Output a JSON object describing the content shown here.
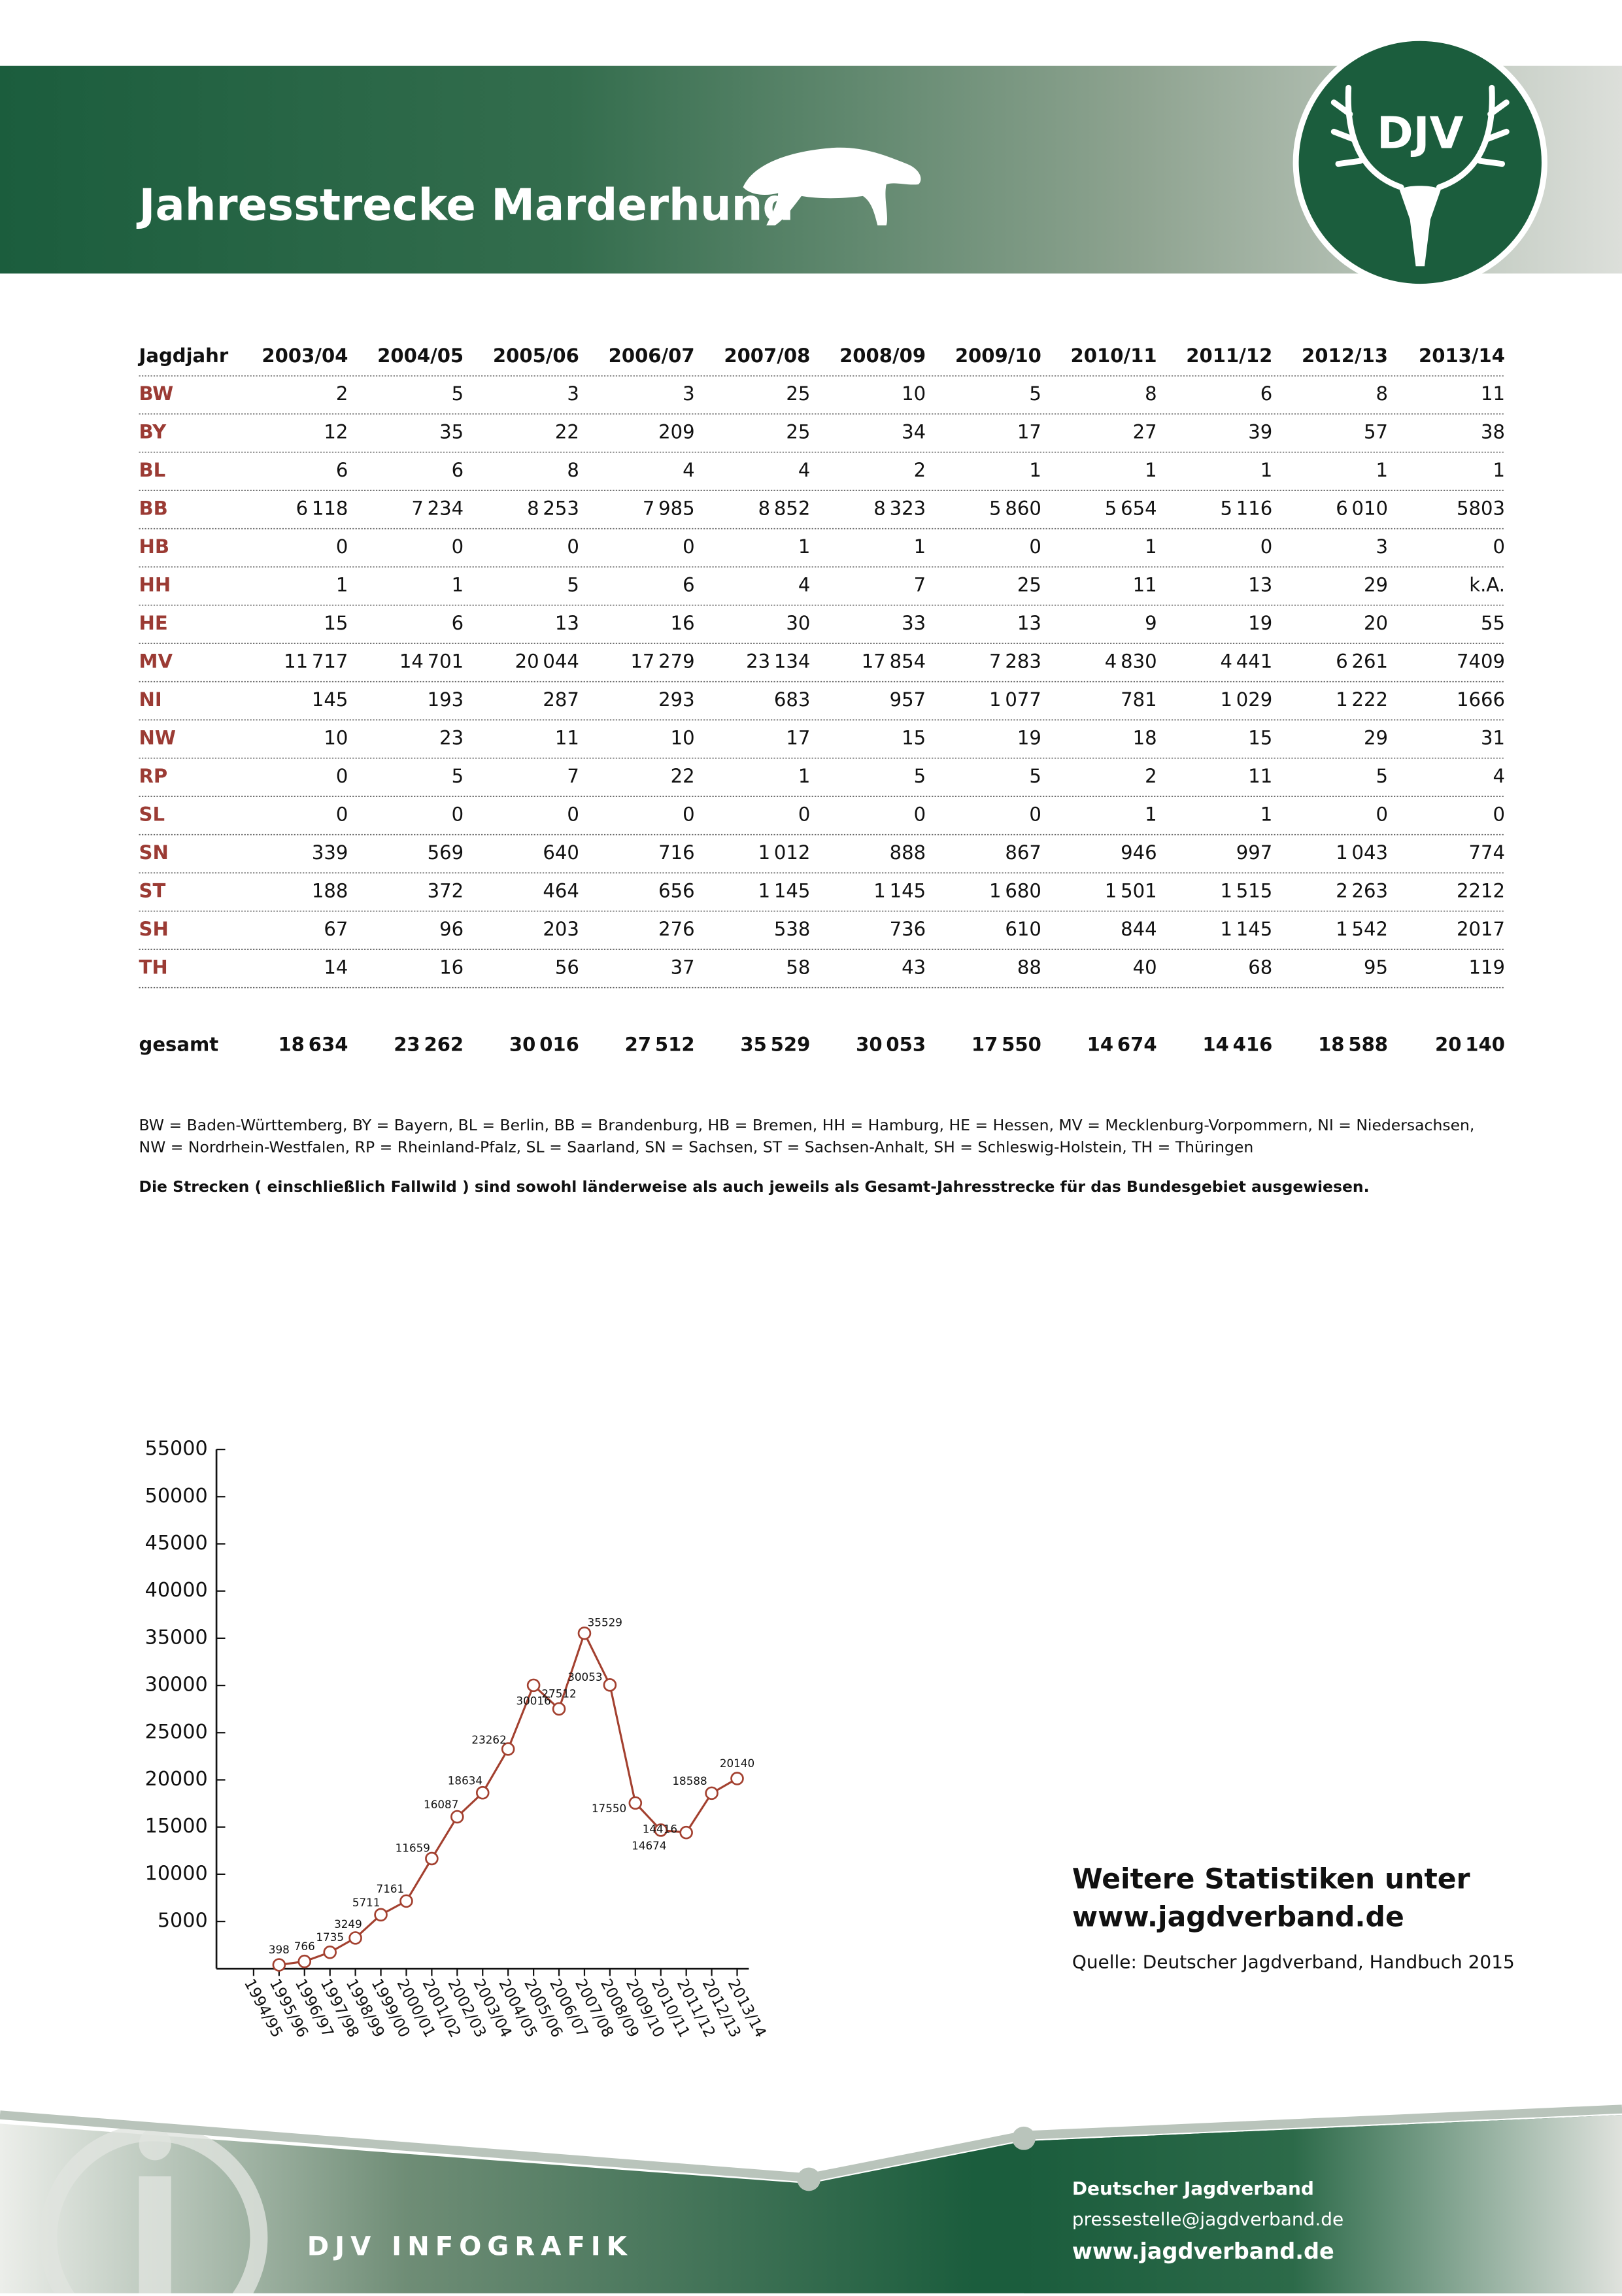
{
  "header": {
    "title": "Jahresstrecke Marderhund",
    "logo": "DJV"
  },
  "table": {
    "columns": [
      "Jagdjahr",
      "2003/04",
      "2004/05",
      "2005/06",
      "2006/07",
      "2007/08",
      "2008/09",
      "2009/10",
      "2010/11",
      "2011/12",
      "2012/13",
      "2013/14"
    ],
    "rows": [
      [
        "BW",
        "2",
        "5",
        "3",
        "3",
        "25",
        "10",
        "5",
        "8",
        "6",
        "8",
        "11"
      ],
      [
        "BY",
        "12",
        "35",
        "22",
        "209",
        "25",
        "34",
        "17",
        "27",
        "39",
        "57",
        "38"
      ],
      [
        "BL",
        "6",
        "6",
        "8",
        "4",
        "4",
        "2",
        "1",
        "1",
        "1",
        "1",
        "1"
      ],
      [
        "BB",
        "6 118",
        "7 234",
        "8 253",
        "7 985",
        "8 852",
        "8 323",
        "5 860",
        "5 654",
        "5 116",
        "6 010",
        "5803"
      ],
      [
        "HB",
        "0",
        "0",
        "0",
        "0",
        "1",
        "1",
        "0",
        "1",
        "0",
        "3",
        "0"
      ],
      [
        "HH",
        "1",
        "1",
        "5",
        "6",
        "4",
        "7",
        "25",
        "11",
        "13",
        "29",
        "k.A."
      ],
      [
        "HE",
        "15",
        "6",
        "13",
        "16",
        "30",
        "33",
        "13",
        "9",
        "19",
        "20",
        "55"
      ],
      [
        "MV",
        "11 717",
        "14 701",
        "20 044",
        "17 279",
        "23 134",
        "17 854",
        "7 283",
        "4 830",
        "4 441",
        "6 261",
        "7409"
      ],
      [
        "NI",
        "145",
        "193",
        "287",
        "293",
        "683",
        "957",
        "1 077",
        "781",
        "1 029",
        "1 222",
        "1666"
      ],
      [
        "NW",
        "10",
        "23",
        "11",
        "10",
        "17",
        "15",
        "19",
        "18",
        "15",
        "29",
        "31"
      ],
      [
        "RP",
        "0",
        "5",
        "7",
        "22",
        "1",
        "5",
        "5",
        "2",
        "11",
        "5",
        "4"
      ],
      [
        "SL",
        "0",
        "0",
        "0",
        "0",
        "0",
        "0",
        "0",
        "1",
        "1",
        "0",
        "0"
      ],
      [
        "SN",
        "339",
        "569",
        "640",
        "716",
        "1 012",
        "888",
        "867",
        "946",
        "997",
        "1 043",
        "774"
      ],
      [
        "ST",
        "188",
        "372",
        "464",
        "656",
        "1 145",
        "1 145",
        "1 680",
        "1 501",
        "1 515",
        "2 263",
        "2212"
      ],
      [
        "SH",
        "67",
        "96",
        "203",
        "276",
        "538",
        "736",
        "610",
        "844",
        "1 145",
        "1 542",
        "2017"
      ],
      [
        "TH",
        "14",
        "16",
        "56",
        "37",
        "58",
        "43",
        "88",
        "40",
        "68",
        "95",
        "119"
      ]
    ],
    "total": [
      "gesamt",
      "18 634",
      "23 262",
      "30 016",
      "27 512",
      "35 529",
      "30 053",
      "17 550",
      "14 674",
      "14 416",
      "18 588",
      "20 140"
    ]
  },
  "legend": [
    "BW = Baden-Württemberg, BY = Bayern, BL = Berlin, BB = Brandenburg, HB = Bremen, HH = Hamburg, HE = Hessen, MV = Mecklenburg-Vorpommern, NI = Niedersachsen,",
    "NW = Nordrhein-Westfalen, RP = Rheinland-Pfalz, SL = Saarland, SN = Sachsen, ST = Sachsen-Anhalt, SH = Schleswig-Holstein, TH = Thüringen"
  ],
  "note": "Die Strecken ( einschließlich Fallwild ) sind sowohl länderweise als auch jeweils als Gesamt-Jahresstrecke für das Bundesgebiet ausgewiesen.",
  "chart_data": {
    "type": "line",
    "categories": [
      "1994/95",
      "1995/96",
      "1996/97",
      "1997/98",
      "1998/99",
      "1999/00",
      "2000/01",
      "2001/02",
      "2002/03",
      "2003/04",
      "2004/05",
      "2005/06",
      "2006/07",
      "2007/08",
      "2008/09",
      "2009/10",
      "2010/11",
      "2011/12",
      "2012/13",
      "2013/14"
    ],
    "values": [
      null,
      398,
      766,
      1735,
      3249,
      5711,
      7161,
      11659,
      16087,
      18634,
      23262,
      30016,
      27512,
      35529,
      30053,
      17550,
      14674,
      14416,
      18588,
      20140
    ],
    "color": "#a3402f",
    "ylim": [
      0,
      55000
    ],
    "yticks": [
      5000,
      10000,
      15000,
      20000,
      25000,
      30000,
      35000,
      40000,
      45000,
      50000,
      55000
    ],
    "grid": false
  },
  "promo": {
    "lines": [
      "Weitere Statistiken unter",
      "www.jagdverband.de"
    ],
    "source": "Quelle: Deutscher Jagdverband, Handbuch 2015"
  },
  "footer": {
    "label": "DJV INFOGRAFIK",
    "org": "Deutscher Jagdverband",
    "email": "pressestelle@jagdverband.de",
    "web": "www.jagdverband.de"
  }
}
